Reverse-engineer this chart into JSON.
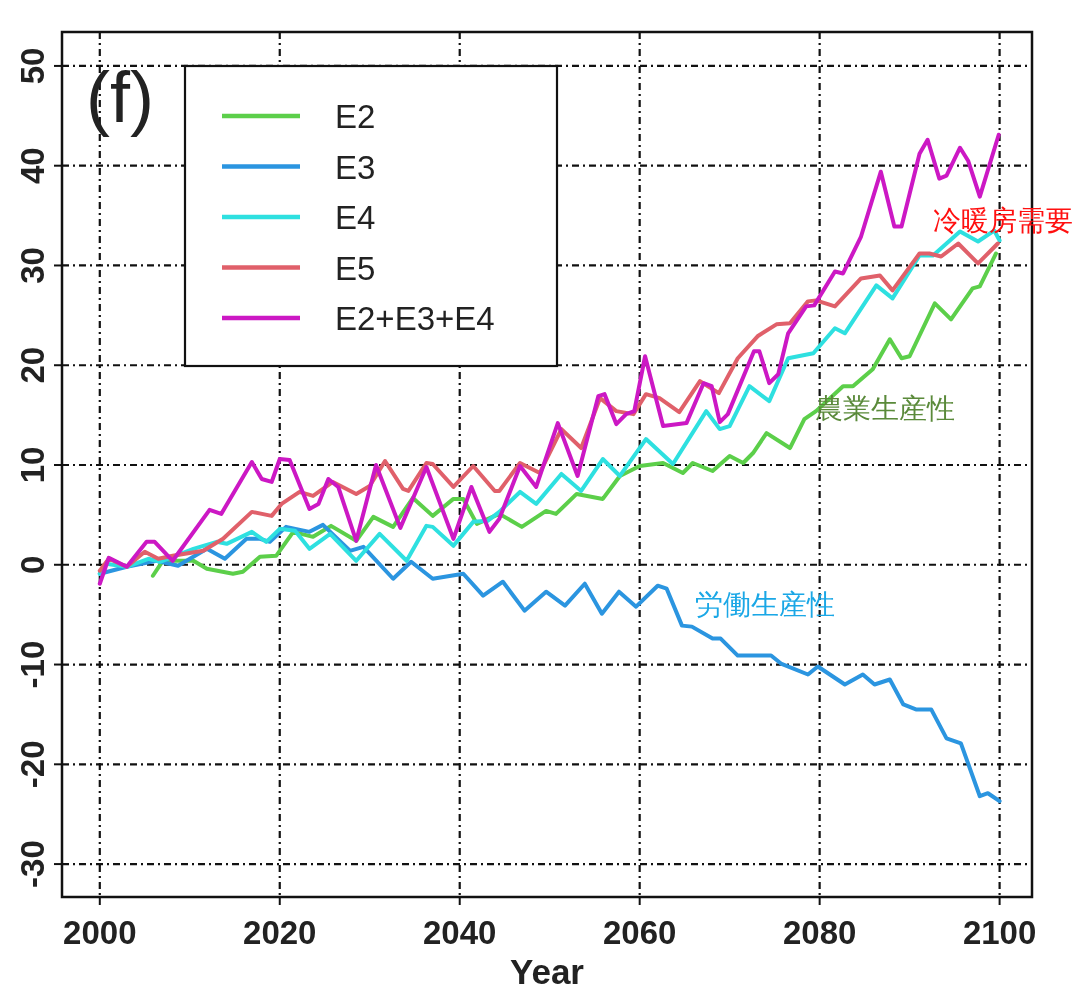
{
  "chart_data": {
    "type": "line",
    "title": "(f)",
    "xlabel": "Year",
    "xlim": [
      1995.8,
      2103.6
    ],
    "ylim": [
      -33.3,
      53.4
    ],
    "xticks": [
      2000,
      2020,
      2040,
      2060,
      2080,
      2100
    ],
    "yticks": [
      -30,
      -20,
      -10,
      0,
      10,
      20,
      30,
      40,
      50
    ],
    "grid": true,
    "legend": "top left",
    "line_style": "solid",
    "series": [
      {
        "name": "E2",
        "color": "#5ccf4a",
        "x": [
          2005.9,
          2007,
          2010.4,
          2011.9,
          2014.8,
          2015.9,
          2017.8,
          2019.6,
          2021.5,
          2023.7,
          2025.7,
          2028.5,
          2030.4,
          2032.6,
          2034.8,
          2037,
          2039.3,
          2040.4,
          2041.9,
          2044.4,
          2046.9,
          2049.6,
          2050.7,
          2053,
          2055.9,
          2057.8,
          2060,
          2062.6,
          2064.8,
          2065.9,
          2068.1,
          2070,
          2071.5,
          2072.6,
          2074.1,
          2076.7,
          2078.3,
          2079.6,
          2082.6,
          2083.7,
          2085.9,
          2087.8,
          2089.1,
          2090,
          2092.8,
          2094.6,
          2097,
          2097.8,
          2099.6
        ],
        "values": [
          -1.1,
          0.4,
          0.4,
          -0.4,
          -0.9,
          -0.7,
          0.8,
          0.9,
          3.3,
          2.8,
          3.9,
          2.4,
          4.8,
          3.8,
          6.7,
          4.9,
          6.6,
          6.6,
          4.1,
          5.1,
          3.8,
          5.4,
          5.1,
          7.1,
          6.6,
          8.9,
          9.9,
          10.2,
          9.2,
          10.2,
          9.4,
          10.9,
          10.2,
          11.2,
          13.2,
          11.7,
          14.6,
          15.4,
          17.9,
          17.9,
          19.6,
          22.6,
          20.7,
          20.9,
          26.2,
          24.6,
          27.7,
          27.9,
          31.2
        ]
      },
      {
        "name": "E3",
        "color": "#2b95e0",
        "x": [
          2000,
          2003,
          2006.3,
          2008.7,
          2011.9,
          2013.9,
          2016.3,
          2017.8,
          2018.9,
          2020.7,
          2023.3,
          2024.8,
          2027.8,
          2029.3,
          2032.6,
          2034.6,
          2037,
          2040.4,
          2042.6,
          2044.8,
          2047.2,
          2049.6,
          2051.7,
          2053.9,
          2055.8,
          2057.7,
          2059.6,
          2062,
          2063,
          2064.7,
          2065.8,
          2068.1,
          2069,
          2070.9,
          2074.6,
          2075.7,
          2078.7,
          2079.8,
          2082.8,
          2084.8,
          2086.1,
          2087.8,
          2089.3,
          2090.7,
          2092.4,
          2094.1,
          2095.7,
          2097.8,
          2098.7,
          2100
        ],
        "values": [
          -0.9,
          -0.2,
          0.4,
          -0.1,
          1.6,
          0.6,
          2.6,
          2.6,
          2.3,
          3.8,
          3.3,
          4.0,
          1.4,
          1.8,
          -1.4,
          0.3,
          -1.4,
          -0.9,
          -3.1,
          -1.7,
          -4.6,
          -2.7,
          -4.1,
          -1.9,
          -4.9,
          -2.7,
          -4.2,
          -2.1,
          -2.4,
          -6.1,
          -6.2,
          -7.4,
          -7.4,
          -9.1,
          -9.1,
          -9.9,
          -11.0,
          -10.2,
          -12.0,
          -11.0,
          -12.0,
          -11.5,
          -14.0,
          -14.5,
          -14.5,
          -17.4,
          -17.9,
          -23.2,
          -22.9,
          -23.7
        ]
      },
      {
        "name": "E4",
        "color": "#2ee0e0",
        "x": [
          2000,
          2000.7,
          2003,
          2005.4,
          2006.7,
          2010.4,
          2013,
          2014.1,
          2016.9,
          2018.5,
          2020,
          2021.7,
          2023.3,
          2025.6,
          2028.5,
          2031.1,
          2034.1,
          2036.3,
          2037,
          2039.3,
          2041.5,
          2043.1,
          2044.4,
          2046.7,
          2048.5,
          2051.3,
          2053.5,
          2055.9,
          2057.8,
          2060.7,
          2063.7,
          2067.4,
          2068.9,
          2070,
          2072.2,
          2074.4,
          2076.5,
          2079.3,
          2081.7,
          2082.8,
          2086.3,
          2088.1,
          2091.1,
          2092.6,
          2095.6,
          2097.6,
          2099.4,
          2100
        ],
        "values": [
          -0.9,
          0.1,
          -0.2,
          0.6,
          0.3,
          1.6,
          2.3,
          2.1,
          3.3,
          2.3,
          3.6,
          3.4,
          1.6,
          3.1,
          0.4,
          3.1,
          0.4,
          3.9,
          3.8,
          1.9,
          4.3,
          4.4,
          5.3,
          7.3,
          6.1,
          9.1,
          7.4,
          10.6,
          8.9,
          12.6,
          10.1,
          15.4,
          13.6,
          13.9,
          17.9,
          16.4,
          20.7,
          21.2,
          23.7,
          23.2,
          28.0,
          26.7,
          31.0,
          31.0,
          33.4,
          32.4,
          33.5,
          32.5
        ]
      },
      {
        "name": "E5",
        "color": "#e0606a",
        "x": [
          2000,
          2001,
          2003,
          2005,
          2006.5,
          2008.1,
          2011.5,
          2013.7,
          2016.9,
          2019.1,
          2020.2,
          2022.2,
          2023.7,
          2025.9,
          2028.5,
          2030,
          2031.7,
          2033.7,
          2034.3,
          2036.3,
          2037,
          2039.3,
          2041.5,
          2043.9,
          2044.4,
          2046.7,
          2048.9,
          2051.3,
          2053.5,
          2055.6,
          2057.4,
          2059.3,
          2060.7,
          2062.2,
          2064.4,
          2066.7,
          2068.8,
          2070.9,
          2073.1,
          2075.2,
          2076.7,
          2078.7,
          2079.6,
          2081.7,
          2084.6,
          2086.7,
          2088.1,
          2091.1,
          2092.2,
          2093.5,
          2095.4,
          2097.6,
          2099.8
        ],
        "values": [
          -0.6,
          0.6,
          -0.2,
          1.3,
          0.6,
          0.9,
          1.4,
          2.6,
          5.3,
          4.9,
          6.1,
          7.3,
          6.9,
          8.3,
          7.1,
          7.9,
          10.4,
          7.6,
          7.4,
          10.2,
          10.1,
          7.8,
          9.9,
          7.4,
          7.4,
          10.2,
          9.2,
          13.6,
          11.7,
          16.7,
          15.4,
          15.1,
          17.1,
          16.7,
          15.3,
          18.4,
          17.2,
          20.7,
          22.9,
          24.1,
          24.2,
          26.4,
          26.5,
          25.9,
          28.7,
          29.0,
          27.5,
          31.2,
          31.2,
          30.9,
          32.2,
          30.2,
          32.2
        ]
      },
      {
        "name": "E2+E3+E4",
        "color": "#cc18c4",
        "x": [
          2000,
          2001,
          2003,
          2005.2,
          2006.1,
          2008.1,
          2012.2,
          2013.5,
          2016.9,
          2018,
          2019.1,
          2020,
          2021.1,
          2023.3,
          2024.3,
          2025.4,
          2026.5,
          2028.5,
          2030.7,
          2033.4,
          2036.3,
          2039.3,
          2041.3,
          2043.3,
          2044.4,
          2046.7,
          2048.5,
          2050.9,
          2053.1,
          2055.4,
          2056.1,
          2057.4,
          2058.5,
          2059.4,
          2060.6,
          2062.6,
          2065.2,
          2067.1,
          2068,
          2068.9,
          2069.8,
          2072.7,
          2073.3,
          2074.4,
          2075.4,
          2076.5,
          2078.5,
          2079.4,
          2081.7,
          2082.6,
          2084.6,
          2086.8,
          2088.3,
          2089.1,
          2091.1,
          2092,
          2093.3,
          2094.1,
          2095.6,
          2096.5,
          2097.8,
          2099.9
        ],
        "values": [
          -1.9,
          0.7,
          -0.2,
          2.3,
          2.3,
          0.4,
          5.5,
          5.1,
          10.3,
          8.6,
          8.3,
          10.6,
          10.5,
          5.6,
          6.1,
          8.6,
          7.8,
          2.4,
          10.0,
          3.7,
          9.8,
          2.6,
          7.8,
          3.3,
          4.6,
          9.9,
          7.8,
          14.2,
          8.9,
          16.9,
          17.1,
          14.1,
          15.1,
          15.4,
          20.9,
          13.9,
          14.2,
          18.2,
          17.9,
          14.3,
          15.1,
          21.4,
          21.4,
          18.2,
          19.1,
          23.2,
          25.9,
          26.0,
          29.4,
          29.2,
          32.9,
          39.4,
          33.9,
          33.9,
          41.2,
          42.6,
          38.7,
          39.0,
          41.8,
          40.5,
          36.9,
          43.1
        ]
      }
    ],
    "annotations": [
      "冷暖房需要",
      "農業生産性",
      "労働生産性"
    ]
  }
}
